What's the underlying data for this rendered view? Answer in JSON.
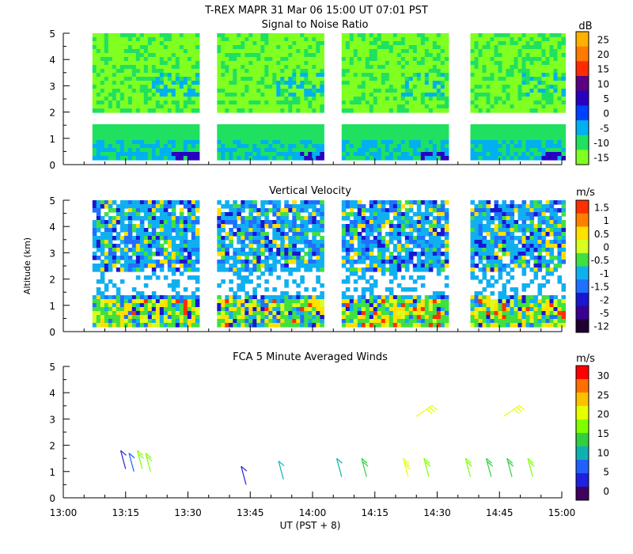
{
  "figure_title": "T-REX   MAPR 31 Mar 06   15:00 UT   07:01   PST",
  "x_axis": {
    "label": "UT  (PST + 8)",
    "ticks": [
      "13:00",
      "13:15",
      "13:30",
      "13:45",
      "14:00",
      "14:15",
      "14:30",
      "14:45",
      "15:00"
    ]
  },
  "colors": {
    "no_data": "#ffffff",
    "axis": "#000000"
  },
  "chart_data": [
    {
      "type": "heatmap",
      "title": "Signal to Noise Ratio",
      "xlabel": "UT  (PST + 8)",
      "ylabel": "",
      "xlim": [
        "13:00",
        "15:00"
      ],
      "ylim": [
        0,
        5
      ],
      "y_ticks": [
        "0",
        "1",
        "2",
        "3",
        "4",
        "5"
      ],
      "unit": "dB",
      "colorbar_labels": [
        "25",
        "20",
        "15",
        "10",
        "5",
        "0",
        "-5",
        "-10",
        "-15"
      ],
      "colorbar_colors": [
        "#ffb000",
        "#ff7a00",
        "#ff2a00",
        "#5a0080",
        "#2a00c0",
        "#0040ff",
        "#00b0f0",
        "#20e060",
        "#80ff20"
      ],
      "data_blocks": [
        {
          "start": "13:07",
          "end": "13:32"
        },
        {
          "start": "13:37",
          "end": "14:02"
        },
        {
          "start": "14:07",
          "end": "14:32"
        },
        {
          "start": "14:38",
          "end": "15:00"
        }
      ]
    },
    {
      "type": "heatmap",
      "title": "Vertical Velocity",
      "xlabel": "UT  (PST + 8)",
      "ylabel": "Altitude (km)",
      "xlim": [
        "13:00",
        "15:00"
      ],
      "ylim": [
        0,
        5
      ],
      "y_ticks": [
        "0",
        "1",
        "2",
        "3",
        "4",
        "5"
      ],
      "unit": "m/s",
      "colorbar_labels": [
        "1.5",
        "1",
        "0.5",
        "0",
        "-0.5",
        "-1",
        "-1.5",
        "-2",
        "-5",
        "-12"
      ],
      "colorbar_colors": [
        "#ff3000",
        "#ff8000",
        "#ffe000",
        "#d8ff20",
        "#40e040",
        "#10b0f0",
        "#2070ff",
        "#1818d0",
        "#3a0090",
        "#200030"
      ],
      "data_blocks": [
        {
          "start": "13:07",
          "end": "13:32"
        },
        {
          "start": "13:37",
          "end": "14:02"
        },
        {
          "start": "14:07",
          "end": "14:32"
        },
        {
          "start": "14:38",
          "end": "15:00"
        }
      ]
    },
    {
      "type": "scatter",
      "title": "FCA 5 Minute Averaged Winds",
      "xlabel": "UT  (PST + 8)",
      "ylabel": "",
      "xlim": [
        "13:00",
        "15:00"
      ],
      "ylim": [
        0,
        5
      ],
      "y_ticks": [
        "0",
        "1",
        "2",
        "3",
        "4",
        "5"
      ],
      "unit": "m/s",
      "colorbar_labels": [
        "30",
        "25",
        "20",
        "15",
        "10",
        "5",
        "0"
      ],
      "colorbar_colors": [
        "#ff0000",
        "#ff7000",
        "#ffc000",
        "#e8ff00",
        "#80ff00",
        "#30d040",
        "#10b0b0",
        "#2060ff",
        "#2020e0",
        "#400060"
      ],
      "barbs": [
        {
          "time": "13:15",
          "alt": 1.1,
          "speed": 5
        },
        {
          "time": "13:17",
          "alt": 1.0,
          "speed": 7
        },
        {
          "time": "13:19",
          "alt": 1.1,
          "speed": 16
        },
        {
          "time": "13:21",
          "alt": 1.0,
          "speed": 18
        },
        {
          "time": "13:44",
          "alt": 0.5,
          "speed": 4
        },
        {
          "time": "13:53",
          "alt": 0.7,
          "speed": 9
        },
        {
          "time": "14:07",
          "alt": 0.8,
          "speed": 11
        },
        {
          "time": "14:13",
          "alt": 0.8,
          "speed": 15
        },
        {
          "time": "14:23",
          "alt": 0.8,
          "speed": 20
        },
        {
          "time": "14:28",
          "alt": 0.8,
          "speed": 18
        },
        {
          "time": "14:38",
          "alt": 0.8,
          "speed": 17
        },
        {
          "time": "14:43",
          "alt": 0.8,
          "speed": 14
        },
        {
          "time": "14:48",
          "alt": 0.8,
          "speed": 13
        },
        {
          "time": "14:53",
          "alt": 0.8,
          "speed": 16
        },
        {
          "time": "14:25",
          "alt": 3.1,
          "speed": 20
        },
        {
          "time": "14:46",
          "alt": 3.1,
          "speed": 20
        }
      ]
    }
  ]
}
